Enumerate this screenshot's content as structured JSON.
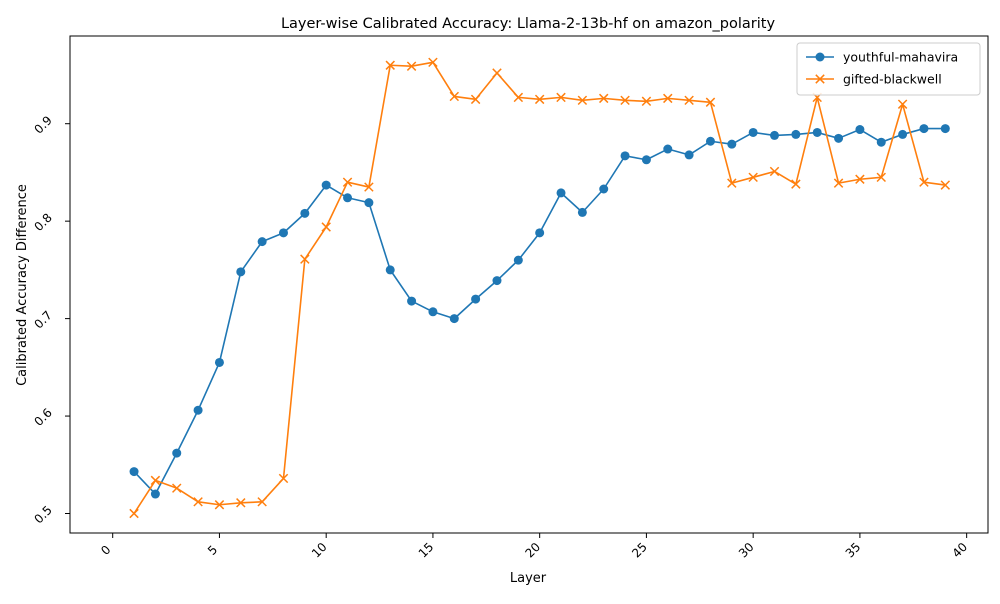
{
  "chart_data": {
    "type": "line",
    "title": "Layer-wise Calibrated Accuracy: Llama-2-13b-hf on amazon_polarity",
    "xlabel": "Layer",
    "ylabel": "Calibrated Accuracy Difference",
    "xlim": [
      -2,
      41
    ],
    "ylim": [
      0.48,
      0.99
    ],
    "xticks": [
      0,
      5,
      10,
      15,
      20,
      25,
      30,
      35,
      40
    ],
    "xtick_labels": [
      "0",
      "5",
      "10",
      "15",
      "20",
      "25",
      "30",
      "35",
      "40"
    ],
    "yticks": [
      0.5,
      0.6,
      0.7,
      0.8,
      0.9
    ],
    "ytick_labels": [
      "0.5",
      "0.6",
      "0.7",
      "0.8",
      "0.9"
    ],
    "grid": false,
    "legend_position": "top-right",
    "x": [
      1,
      2,
      3,
      4,
      5,
      6,
      7,
      8,
      9,
      10,
      11,
      12,
      13,
      14,
      15,
      16,
      17,
      18,
      19,
      20,
      21,
      22,
      23,
      24,
      25,
      26,
      27,
      28,
      29,
      30,
      31,
      32,
      33,
      34,
      35,
      36,
      37,
      38,
      39
    ],
    "series": [
      {
        "name": "youthful-mahavira",
        "color": "#1f77b4",
        "marker": "circle",
        "values": [
          0.543,
          0.52,
          0.562,
          0.606,
          0.655,
          0.748,
          0.779,
          0.788,
          0.808,
          0.837,
          0.824,
          0.819,
          0.75,
          0.718,
          0.707,
          0.7,
          0.72,
          0.739,
          0.76,
          0.788,
          0.829,
          0.809,
          0.833,
          0.867,
          0.863,
          0.874,
          0.868,
          0.882,
          0.879,
          0.891,
          0.888,
          0.889,
          0.891,
          0.885,
          0.894,
          0.881,
          0.889,
          0.895,
          0.895
        ]
      },
      {
        "name": "gifted-blackwell",
        "color": "#ff7f0e",
        "marker": "x",
        "values": [
          0.5,
          0.534,
          0.526,
          0.512,
          0.509,
          0.511,
          0.512,
          0.536,
          0.761,
          0.794,
          0.84,
          0.835,
          0.96,
          0.959,
          0.963,
          0.928,
          0.925,
          0.952,
          0.927,
          0.925,
          0.927,
          0.924,
          0.926,
          0.924,
          0.923,
          0.926,
          0.924,
          0.922,
          0.839,
          0.845,
          0.851,
          0.838,
          0.927,
          0.839,
          0.843,
          0.845,
          0.92,
          0.84,
          0.837
        ]
      }
    ]
  }
}
